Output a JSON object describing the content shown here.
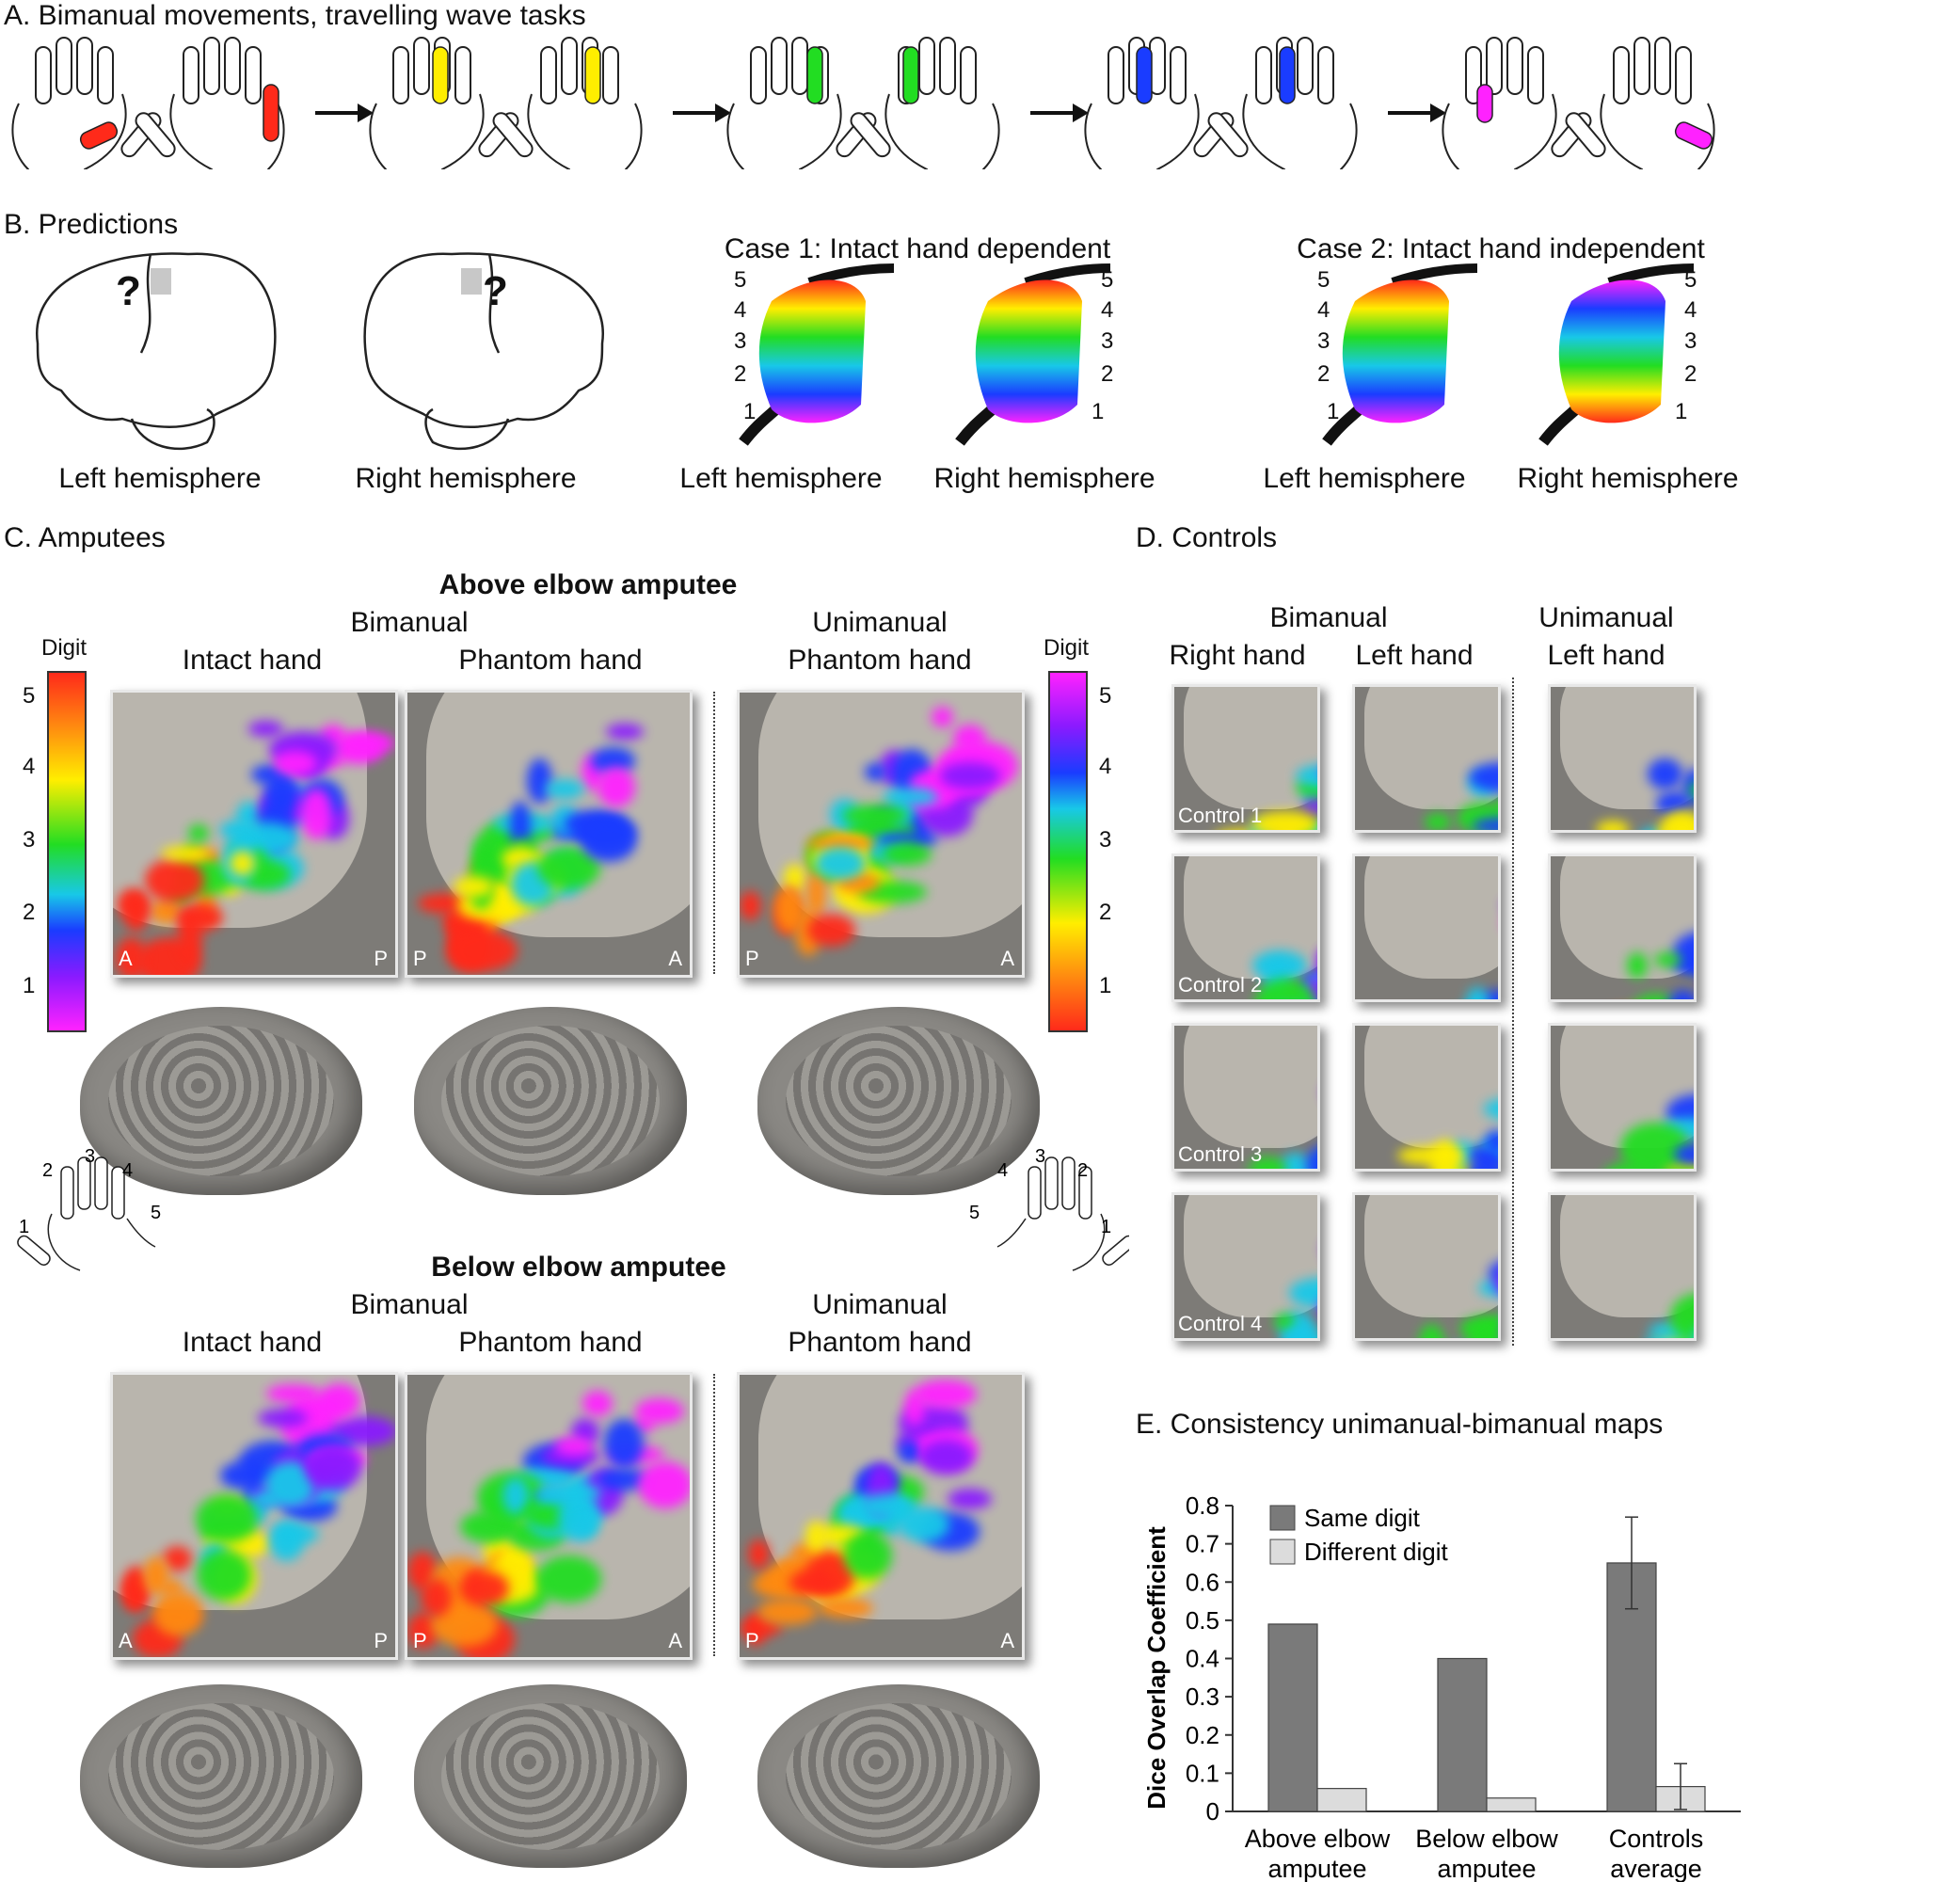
{
  "panelA": {
    "title": "A. Bimanual movements, travelling wave tasks"
  },
  "panelB": {
    "title": "B. Predictions",
    "question": "?",
    "left_hemi": "Left hemisphere",
    "right_hemi": "Right hemisphere",
    "case1": "Case 1: Intact hand dependent",
    "case2": "Case 2: Intact hand independent",
    "digits": [
      "1",
      "2",
      "3",
      "4",
      "5"
    ]
  },
  "panelC": {
    "title": "C. Amputees",
    "above": "Above elbow amputee",
    "below": "Below elbow amputee",
    "bimanual": "Bimanual",
    "unimanual": "Unimanual",
    "intact": "Intact hand",
    "phantom": "Phantom hand",
    "digit": "Digit",
    "A": "A",
    "P": "P",
    "digits": [
      "1",
      "2",
      "3",
      "4",
      "5"
    ]
  },
  "panelD": {
    "title": "D. Controls",
    "bimanual": "Bimanual",
    "unimanual": "Unimanual",
    "right_hand": "Right hand",
    "left_hand": "Left hand",
    "left_hand2": "Left hand",
    "controls": [
      "Control 1",
      "Control 2",
      "Control 3",
      "Control 4"
    ]
  },
  "colors": {
    "red": "#ff2a1a",
    "orange": "#ff8a10",
    "yellow": "#ffee00",
    "green": "#22dd22",
    "cyan": "#18c8e8",
    "blue": "#1a3cff",
    "purple": "#8a1aff",
    "magenta": "#ff22ff",
    "same": "#7a7a7a",
    "diff": "#dcdcdc"
  },
  "chart_data": {
    "type": "bar",
    "title": "E. Consistency unimanual-bimanual maps",
    "ylabel": "Dice Overlap Coefficient",
    "xlabel": "",
    "categories": [
      "Above elbow amputee",
      "Below elbow amputee",
      "Controls average"
    ],
    "category_lines": [
      [
        "Above elbow",
        "amputee"
      ],
      [
        "Below elbow",
        "amputee"
      ],
      [
        "Controls",
        "average"
      ]
    ],
    "series": [
      {
        "name": "Same digit",
        "values": [
          0.49,
          0.4,
          0.65
        ],
        "errors": [
          null,
          null,
          0.12
        ],
        "color": "#7a7a7a"
      },
      {
        "name": "Different digit",
        "values": [
          0.06,
          0.035,
          0.065
        ],
        "errors": [
          null,
          null,
          0.06
        ],
        "color": "#dcdcdc"
      }
    ],
    "ylim": [
      0,
      0.8
    ],
    "yticks": [
      "0",
      "0.1",
      "0.2",
      "0.3",
      "0.4",
      "0.5",
      "0.6",
      "0.7",
      "0.8"
    ],
    "legend": "top-left",
    "grid": false
  }
}
